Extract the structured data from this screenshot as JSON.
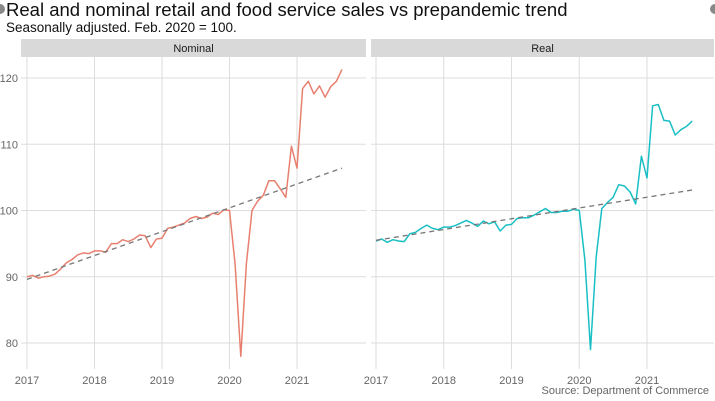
{
  "title": "Real and nominal retail and food service sales vs prepandemic trend",
  "subtitle": "Seasonally adjusted. Feb. 2020 = 100.",
  "source": "Source: Department of Commerce",
  "chart_data": [
    {
      "type": "line",
      "panel": "Nominal",
      "x_start": "2017-01",
      "frequency": "monthly",
      "x_ticks": [
        "2017",
        "2018",
        "2019",
        "2020",
        "2021"
      ],
      "y_ticks": [
        80,
        90,
        100,
        110,
        120
      ],
      "ylim": [
        76.5,
        122.5
      ],
      "grid": true,
      "series": [
        {
          "color": "#E8806F",
          "values": [
            90.0,
            90.2,
            89.8,
            90.0,
            90.1,
            90.4,
            91.2,
            92.1,
            92.6,
            93.3,
            93.6,
            93.5,
            93.9,
            93.9,
            93.7,
            95.0,
            95.0,
            95.6,
            95.3,
            95.7,
            96.3,
            96.2,
            94.4,
            95.7,
            95.8,
            97.3,
            97.5,
            97.8,
            98.1,
            98.8,
            99.1,
            98.8,
            99.0,
            99.6,
            99.4,
            100.1,
            100.0,
            91.9,
            78.0,
            92.0,
            100.0,
            101.4,
            102.3,
            104.5,
            104.5,
            103.3,
            102.0,
            109.7,
            106.4,
            118.4,
            119.5,
            117.6,
            118.8,
            117.1,
            118.7,
            119.5,
            121.3
          ]
        },
        {
          "name": "prepandemic trend",
          "color": "#777777",
          "dashed": true,
          "x": [
            "2017-01",
            "2021-09"
          ],
          "values": [
            89.6,
            106.4
          ]
        }
      ]
    },
    {
      "type": "line",
      "panel": "Real",
      "x_start": "2017-01",
      "frequency": "monthly",
      "x_ticks": [
        "2017",
        "2018",
        "2019",
        "2020",
        "2021"
      ],
      "y_ticks": [
        80,
        90,
        100,
        110,
        120
      ],
      "ylim": [
        76.5,
        122.5
      ],
      "grid": true,
      "series": [
        {
          "color": "#19BFC4",
          "values": [
            95.4,
            95.7,
            95.2,
            95.6,
            95.4,
            95.3,
            96.5,
            96.7,
            97.3,
            97.8,
            97.3,
            97.1,
            97.5,
            97.5,
            97.7,
            98.1,
            98.5,
            98.1,
            97.6,
            98.4,
            98.0,
            98.3,
            96.9,
            97.8,
            97.9,
            98.8,
            98.9,
            98.9,
            99.3,
            99.8,
            100.3,
            99.7,
            99.7,
            99.9,
            99.9,
            100.2,
            100.0,
            92.5,
            79.0,
            93.0,
            100.3,
            101.2,
            102.0,
            103.9,
            103.7,
            102.8,
            101.0,
            108.2,
            104.9,
            115.8,
            116.0,
            113.6,
            113.5,
            111.4,
            112.2,
            112.7,
            113.5
          ]
        },
        {
          "name": "prepandemic trend",
          "color": "#777777",
          "dashed": true,
          "x": [
            "2017-01",
            "2021-09"
          ],
          "values": [
            95.5,
            103.1
          ]
        }
      ]
    }
  ]
}
